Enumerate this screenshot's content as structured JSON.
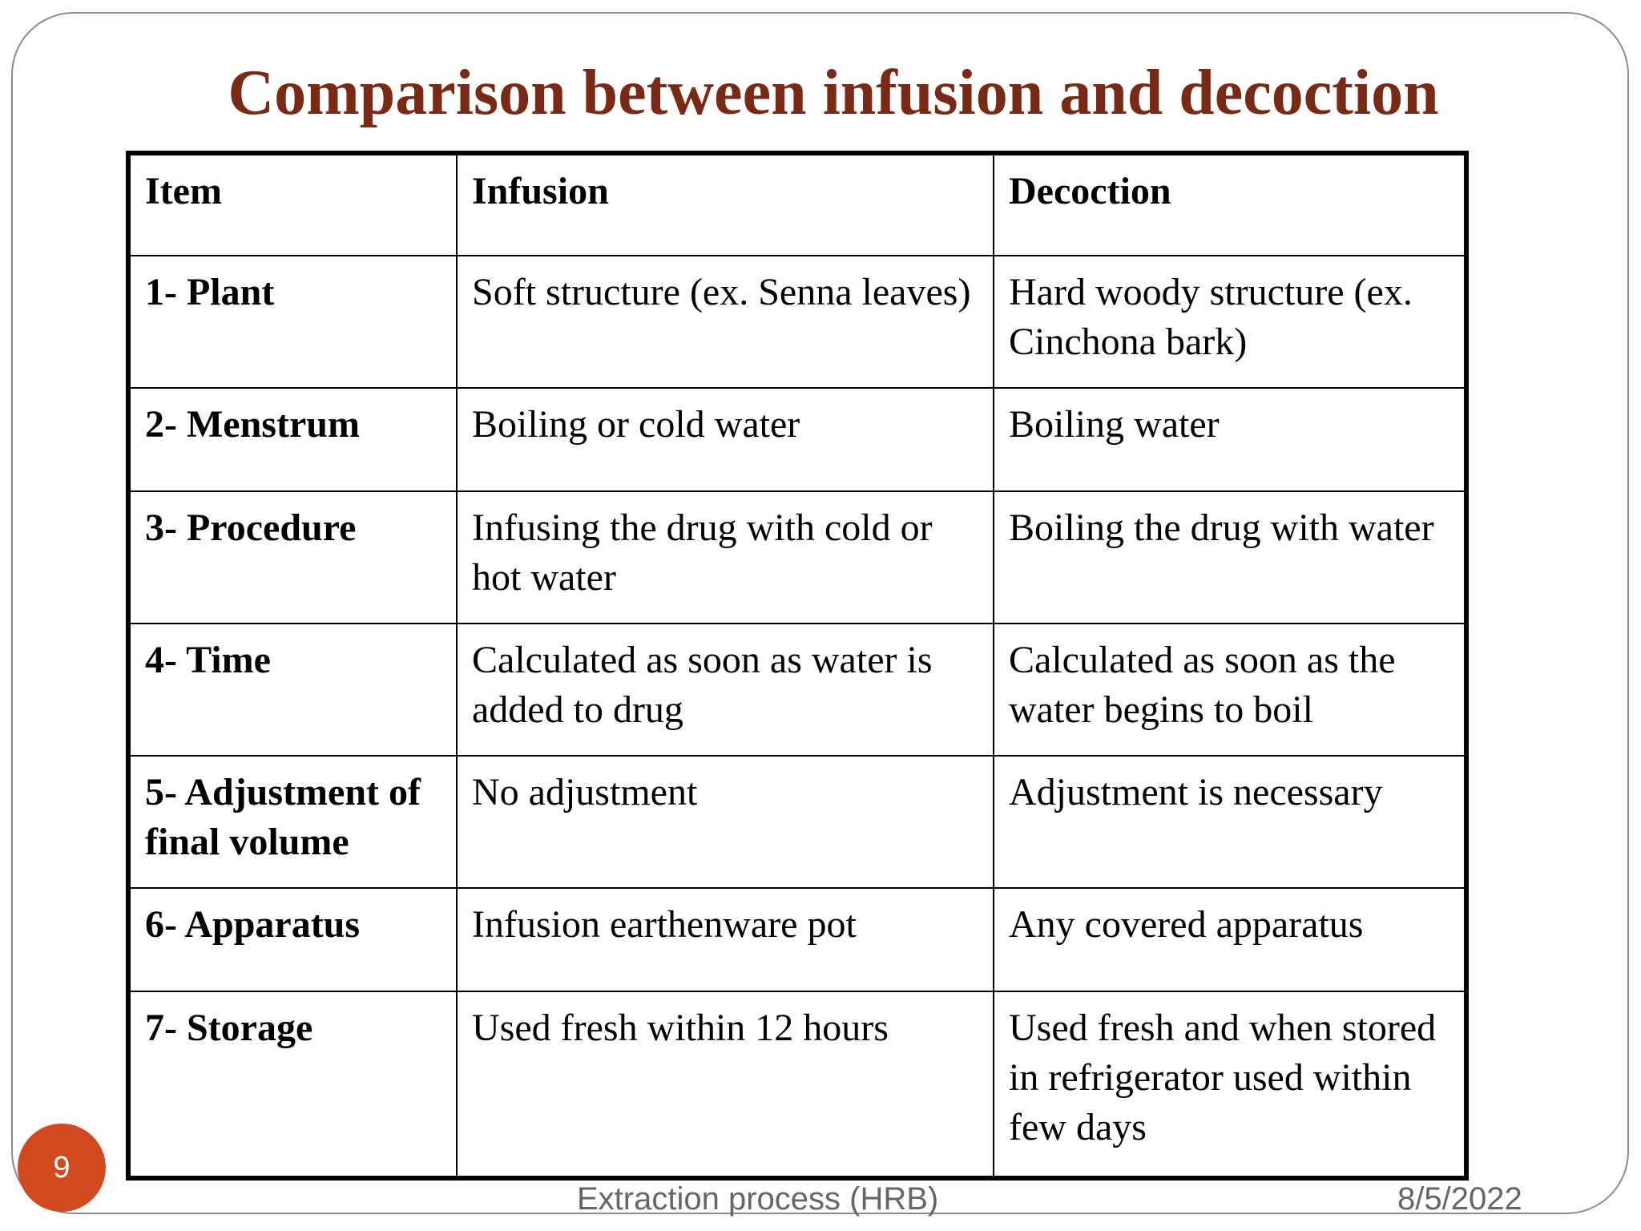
{
  "title": "Comparison between infusion and decoction",
  "table": {
    "headers": [
      "Item",
      "Infusion",
      "Decoction"
    ],
    "rows": [
      {
        "item": "1- Plant",
        "infusion": "Soft structure (ex. Senna leaves)",
        "decoction": "Hard woody structure (ex. Cinchona bark)"
      },
      {
        "item": "2- Menstrum",
        "infusion": "Boiling or cold water",
        "decoction": "Boiling water"
      },
      {
        "item": "3- Procedure",
        "infusion": "Infusing the drug with cold or hot water",
        "decoction": "Boiling the drug with water"
      },
      {
        "item": "4- Time",
        "infusion": "Calculated as soon as water is added to drug",
        "decoction": "Calculated as soon as the water begins to boil"
      },
      {
        "item": "5- Adjustment of final volume",
        "infusion": "No adjustment",
        "decoction": "Adjustment is necessary"
      },
      {
        "item": "6- Apparatus",
        "infusion": "Infusion earthenware pot",
        "decoction": "Any covered apparatus"
      },
      {
        "item": "7- Storage",
        "infusion": "Used fresh within 12 hours",
        "decoction": "Used fresh and when stored in refrigerator used within few days"
      }
    ]
  },
  "footer": {
    "center": "Extraction process (HRB)",
    "date": "8/5/2022",
    "page_number": "9"
  },
  "colors": {
    "title": "#7a2a14",
    "badge": "#d2491f",
    "footer_text": "#666666",
    "frame_border": "#8c8c8c"
  }
}
